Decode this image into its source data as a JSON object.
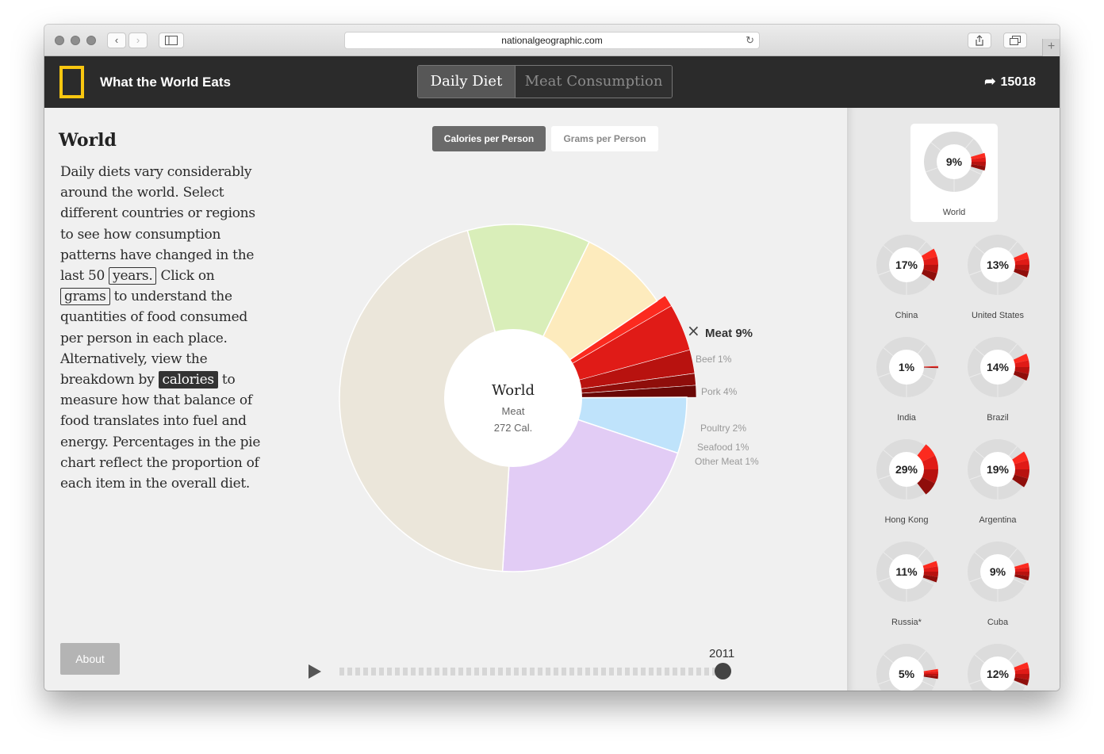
{
  "browser": {
    "url": "nationalgeographic.com",
    "back_glyph": "‹",
    "forward_glyph": "›",
    "reload_glyph": "↻",
    "new_tab_glyph": "+"
  },
  "header": {
    "title": "What the World Eats",
    "tabs": [
      {
        "label": "Daily Diet",
        "active": true
      },
      {
        "label": "Meat Consumption",
        "active": false
      }
    ],
    "share_count": "15018",
    "share_glyph": "➦"
  },
  "main": {
    "region_title": "World",
    "description": {
      "p1": "Daily diets vary considerably around the world. Select different countries or regions to see how consumption patterns have changed in the last 50 ",
      "years_link": "years.",
      "p2": " Click on ",
      "grams_link": "grams",
      "p3": " to understand the quantities of food consumed per person in each place. Alternatively, view the breakdown by ",
      "calories_link": "calories",
      "p4": " to measure how that balance of food translates into fuel and energy. Percentages in the pie chart reflect the proportion of each item in the overall diet."
    },
    "toggles": {
      "calories": "Calories per Person",
      "grams": "Grams per Person"
    },
    "center": {
      "region": "World",
      "category": "Meat",
      "calories": "272 Cal."
    },
    "about_label": "About",
    "year": "2011",
    "close_glyph": "×"
  },
  "chart_data": {
    "type": "pie",
    "center_label": "World",
    "slices": [
      {
        "value": 5,
        "color": "#bfe3fb"
      },
      {
        "value": 20,
        "color": "#e2ccf5"
      },
      {
        "value": 43,
        "color": "#ebe6da"
      },
      {
        "value": 11,
        "color": "#d9eeb9"
      },
      {
        "value": 8,
        "color": "#fdebbd"
      }
    ],
    "meat": {
      "label": "Meat 9%",
      "value": 9,
      "parts": [
        {
          "label": "Beef 1%",
          "value": 1,
          "color": "#fc2a1f"
        },
        {
          "label": "Pork 4%",
          "value": 4,
          "color": "#e01b17"
        },
        {
          "label": "Poultry 2%",
          "value": 2,
          "color": "#b8120f"
        },
        {
          "label": "Seafood 1%",
          "value": 1,
          "color": "#8f0e0b"
        },
        {
          "label": "Other Meat 1%",
          "value": 1,
          "color": "#6a0806"
        }
      ]
    }
  },
  "sidebar": {
    "countries": [
      {
        "name": "World",
        "pct": "9%",
        "value": 9,
        "selected": true
      },
      {
        "name": "China",
        "pct": "17%",
        "value": 17
      },
      {
        "name": "United States",
        "pct": "13%",
        "value": 13
      },
      {
        "name": "India",
        "pct": "1%",
        "value": 1
      },
      {
        "name": "Brazil",
        "pct": "14%",
        "value": 14
      },
      {
        "name": "Hong Kong",
        "pct": "29%",
        "value": 29
      },
      {
        "name": "Argentina",
        "pct": "19%",
        "value": 19
      },
      {
        "name": "Russia*",
        "pct": "11%",
        "value": 11
      },
      {
        "name": "Cuba",
        "pct": "9%",
        "value": 9
      },
      {
        "name": "",
        "pct": "5%",
        "value": 5
      },
      {
        "name": "",
        "pct": "12%",
        "value": 12
      }
    ]
  }
}
